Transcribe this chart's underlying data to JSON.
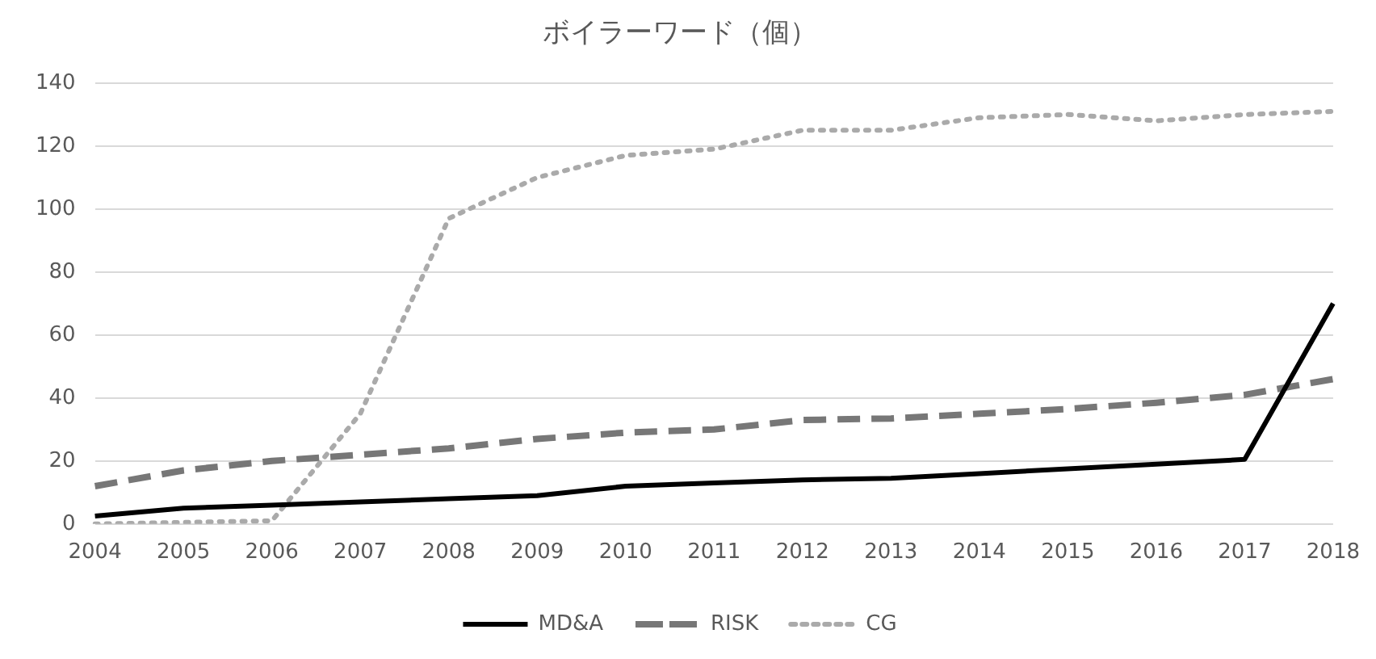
{
  "chart_data": {
    "type": "line",
    "title": "ボイラーワード（個）",
    "categories": [
      "2004",
      "2005",
      "2006",
      "2007",
      "2008",
      "2009",
      "2010",
      "2011",
      "2012",
      "2013",
      "2014",
      "2015",
      "2016",
      "2017",
      "2018"
    ],
    "series": [
      {
        "name": "MD&A",
        "color": "#000000",
        "line_style": "solid",
        "values": [
          2.5,
          5,
          6,
          7,
          8,
          9,
          12,
          13,
          14,
          14.5,
          16,
          17.5,
          19,
          20.5,
          70
        ]
      },
      {
        "name": "RISK",
        "color": "#777777",
        "line_style": "dashed",
        "values": [
          12,
          17,
          20,
          22,
          24,
          27,
          29,
          30,
          33,
          33.5,
          35,
          36.5,
          38.5,
          41,
          46
        ]
      },
      {
        "name": "CG",
        "color": "#aaaaaa",
        "line_style": "dotted",
        "values": [
          0,
          0.5,
          1,
          35,
          97,
          110,
          117,
          119,
          125,
          125,
          129,
          130,
          128,
          130,
          131
        ]
      }
    ],
    "ylim": [
      0,
      140
    ],
    "yticks": [
      0,
      20,
      40,
      60,
      80,
      100,
      120,
      140
    ],
    "grid": "y",
    "legend": "bottom",
    "marker": "none"
  }
}
